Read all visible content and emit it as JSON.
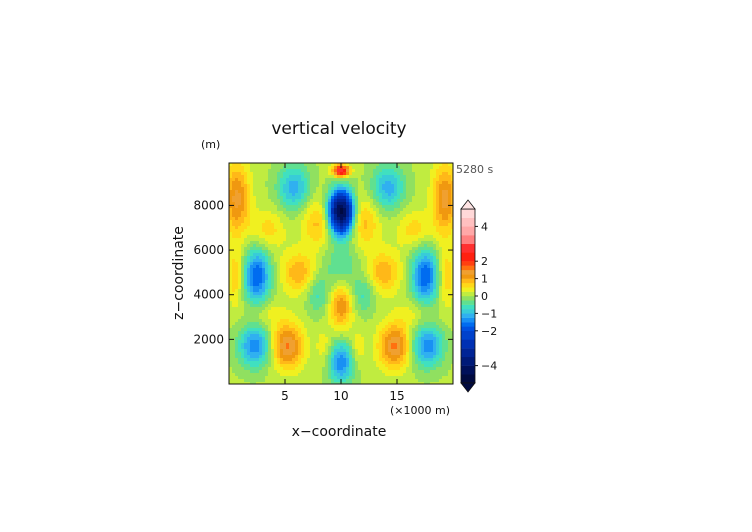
{
  "chart_data": {
    "type": "heatmap",
    "title": "vertical velocity",
    "time_label": "5280 s",
    "ylabel": "z−coordinate",
    "yunit": "(m)",
    "xlabel": "x−coordinate",
    "xunit": "(×1000 m)",
    "xlim": [
      0,
      20
    ],
    "ylim": [
      0,
      9900
    ],
    "xticks": [
      {
        "value": 5,
        "label": "5"
      },
      {
        "value": 10,
        "label": "10"
      },
      {
        "value": 15,
        "label": "15"
      }
    ],
    "yticks": [
      {
        "value": 2000,
        "label": "2000"
      },
      {
        "value": 4000,
        "label": "4000"
      },
      {
        "value": 6000,
        "label": "6000"
      },
      {
        "value": 8000,
        "label": "8000"
      }
    ],
    "colorbar": {
      "levels": [
        -5,
        -4.5,
        -4,
        -3.5,
        -3,
        -2.5,
        -2,
        -1.75,
        -1.5,
        -1.25,
        -1,
        -0.75,
        -0.5,
        -0.25,
        0,
        0.25,
        0.5,
        0.75,
        1,
        1.25,
        1.5,
        1.75,
        2,
        2.5,
        3,
        3.5,
        4,
        4.5,
        5
      ],
      "colors": [
        "#000a40",
        "#00105a",
        "#001a78",
        "#002496",
        "#0030b4",
        "#0042cc",
        "#0050e0",
        "#006cf0",
        "#1890f4",
        "#30b0f0",
        "#38ccd8",
        "#40e0c0",
        "#60e090",
        "#90e060",
        "#c0ec40",
        "#f0f020",
        "#ffd818",
        "#ffb818",
        "#f09810",
        "#f0a030",
        "#ff7010",
        "#ff4010",
        "#ff2010",
        "#ff3030",
        "#ff8080",
        "#ffa8a8",
        "#ffc0c0",
        "#ffd8d8"
      ],
      "tick_labels": [
        {
          "value": 4,
          "label": "4"
        },
        {
          "value": 2,
          "label": "2"
        },
        {
          "value": 1,
          "label": "1"
        },
        {
          "value": 0,
          "label": "0"
        },
        {
          "value": -1,
          "label": "−1"
        },
        {
          "value": -2,
          "label": "−2"
        },
        {
          "value": -4,
          "label": "−4"
        }
      ]
    },
    "features": [
      {
        "x": 10,
        "z": 9550,
        "sx": 0.5,
        "sz": 180,
        "w": 2.8
      },
      {
        "x": 10,
        "z": 7700,
        "sx": 0.75,
        "sz": 650,
        "w": -4.8
      },
      {
        "x": 10,
        "z": 5300,
        "sx": 1.3,
        "sz": 900,
        "w": -0.5
      },
      {
        "x": 10,
        "z": 3500,
        "sx": 0.7,
        "sz": 700,
        "w": 1.2
      },
      {
        "x": 10,
        "z": 950,
        "sx": 0.8,
        "sz": 650,
        "w": -1.5
      },
      {
        "x": 2.5,
        "z": 4800,
        "sx": 0.85,
        "sz": 900,
        "w": -1.8
      },
      {
        "x": 17.5,
        "z": 4800,
        "sx": 0.85,
        "sz": 900,
        "w": -1.8
      },
      {
        "x": 2.3,
        "z": 1700,
        "sx": 1.0,
        "sz": 650,
        "w": -1.5
      },
      {
        "x": 17.7,
        "z": 1700,
        "sx": 1.0,
        "sz": 650,
        "w": -1.5
      },
      {
        "x": 5.2,
        "z": 1700,
        "sx": 1.0,
        "sz": 700,
        "w": 1.5
      },
      {
        "x": 14.8,
        "z": 1700,
        "sx": 1.0,
        "sz": 700,
        "w": 1.5
      },
      {
        "x": 6.2,
        "z": 5000,
        "sx": 1.1,
        "sz": 650,
        "w": 0.9
      },
      {
        "x": 13.8,
        "z": 5000,
        "sx": 1.1,
        "sz": 650,
        "w": 0.9
      },
      {
        "x": 7.9,
        "z": 4000,
        "sx": 0.7,
        "sz": 600,
        "w": -0.6
      },
      {
        "x": 12.1,
        "z": 4000,
        "sx": 0.7,
        "sz": 600,
        "w": -0.6
      },
      {
        "x": 5.8,
        "z": 8800,
        "sx": 1.0,
        "sz": 700,
        "w": -1.2
      },
      {
        "x": 14.2,
        "z": 8800,
        "sx": 1.0,
        "sz": 700,
        "w": -1.2
      },
      {
        "x": 8.0,
        "z": 7200,
        "sx": 1.0,
        "sz": 800,
        "w": 0.8
      },
      {
        "x": 12.0,
        "z": 7200,
        "sx": 1.0,
        "sz": 800,
        "w": 0.8
      },
      {
        "x": 0.7,
        "z": 8300,
        "sx": 0.8,
        "sz": 1100,
        "w": 1.3
      },
      {
        "x": 19.3,
        "z": 8300,
        "sx": 0.8,
        "sz": 1100,
        "w": 1.3
      },
      {
        "x": 0.6,
        "z": 4800,
        "sx": 0.5,
        "sz": 900,
        "w": 0.7
      },
      {
        "x": 19.4,
        "z": 4800,
        "sx": 0.5,
        "sz": 900,
        "w": 0.7
      },
      {
        "x": 8.5,
        "z": 1600,
        "sx": 0.5,
        "sz": 600,
        "w": 0.4
      },
      {
        "x": 11.5,
        "z": 1600,
        "sx": 0.5,
        "sz": 600,
        "w": 0.4
      },
      {
        "x": 3.4,
        "z": 6900,
        "sx": 1.1,
        "sz": 600,
        "w": 0.6
      },
      {
        "x": 16.6,
        "z": 6900,
        "sx": 1.1,
        "sz": 600,
        "w": 0.6
      },
      {
        "x": 3.2,
        "z": 3200,
        "sx": 1.2,
        "sz": 500,
        "w": 0.4
      },
      {
        "x": 16.8,
        "z": 3200,
        "sx": 1.2,
        "sz": 500,
        "w": 0.4
      }
    ]
  }
}
